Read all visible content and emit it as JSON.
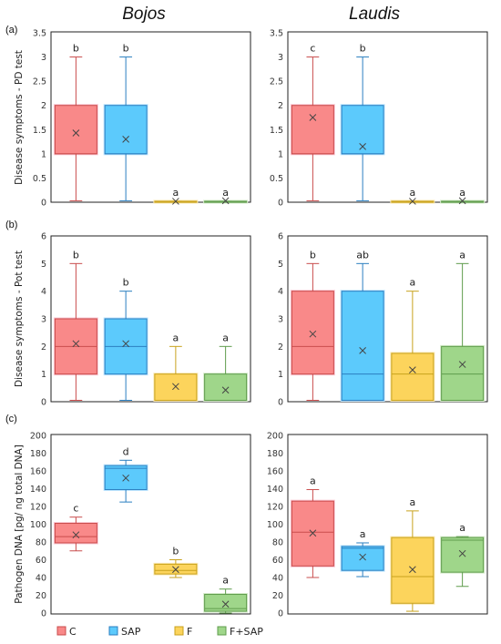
{
  "column_titles": [
    "Bojos",
    "Laudis"
  ],
  "row_labels": [
    "(a)",
    "(b)",
    "(c)"
  ],
  "colors": {
    "C": {
      "fill": "#f98989",
      "stroke": "#c94c4c",
      "glow": "#fbc9d4"
    },
    "SAP": {
      "fill": "#5ccafc",
      "stroke": "#2b7fc0",
      "glow": "#bfe6ff"
    },
    "F": {
      "fill": "#fcd45c",
      "stroke": "#c8a21c",
      "glow": "#fbe9b3"
    },
    "F+SAP": {
      "fill": "#9fd68a",
      "stroke": "#5f9c4c",
      "glow": "#d6eccb"
    }
  },
  "legend": [
    {
      "key": "C",
      "label": "C"
    },
    {
      "key": "SAP",
      "label": "SAP"
    },
    {
      "key": "F",
      "label": "F"
    },
    {
      "key": "F+SAP",
      "label": "F+SAP"
    }
  ],
  "chart_data": [
    {
      "type": "box",
      "panel": "a",
      "column": "Bojos",
      "ylabel": "Disease symptoms - PD test",
      "ylim": [
        0,
        3.5
      ],
      "yticks": [
        "0",
        "0.5",
        "1",
        "1.5",
        "2",
        "2.5",
        "3",
        "3.5"
      ],
      "boxes": [
        {
          "group": "C",
          "min": 0.03,
          "q1": 1,
          "median": 1,
          "q3": 2,
          "max": 3,
          "mean": 1.43,
          "letter": "b"
        },
        {
          "group": "SAP",
          "min": 0.03,
          "q1": 1,
          "median": 1,
          "q3": 2,
          "max": 3,
          "mean": 1.3,
          "letter": "b"
        },
        {
          "group": "F",
          "min": 0,
          "q1": 0,
          "median": 0,
          "q3": 0.02,
          "max": 0.02,
          "mean": 0.02,
          "letter": "a"
        },
        {
          "group": "F+SAP",
          "min": 0,
          "q1": 0,
          "median": 0,
          "q3": 0.02,
          "max": 0.02,
          "mean": 0.03,
          "letter": "a"
        }
      ]
    },
    {
      "type": "box",
      "panel": "a",
      "column": "Laudis",
      "ylabel": "",
      "ylim": [
        0,
        3.5
      ],
      "yticks": [
        "0",
        "0.5",
        "1",
        "1.5",
        "2",
        "2.5",
        "3",
        "3.5"
      ],
      "boxes": [
        {
          "group": "C",
          "min": 0.03,
          "q1": 1,
          "median": 1,
          "q3": 2,
          "max": 3,
          "mean": 1.75,
          "letter": "c"
        },
        {
          "group": "SAP",
          "min": 0.03,
          "q1": 1,
          "median": 1,
          "q3": 2,
          "max": 3,
          "mean": 1.15,
          "letter": "b"
        },
        {
          "group": "F",
          "min": 0,
          "q1": 0,
          "median": 0,
          "q3": 0.02,
          "max": 0.02,
          "mean": 0.02,
          "letter": "a"
        },
        {
          "group": "F+SAP",
          "min": 0,
          "q1": 0,
          "median": 0,
          "q3": 0.02,
          "max": 0.02,
          "mean": 0.03,
          "letter": "a"
        }
      ]
    },
    {
      "type": "box",
      "panel": "b",
      "column": "Bojos",
      "ylabel": "Disease symptoms - Pot test",
      "ylim": [
        0,
        6
      ],
      "yticks": [
        "0",
        "1",
        "2",
        "3",
        "4",
        "5",
        "6"
      ],
      "boxes": [
        {
          "group": "C",
          "min": 0.05,
          "q1": 1,
          "median": 2,
          "q3": 3,
          "max": 5,
          "mean": 2.1,
          "letter": "b"
        },
        {
          "group": "SAP",
          "min": 0.05,
          "q1": 1,
          "median": 2,
          "q3": 3,
          "max": 4,
          "mean": 2.1,
          "letter": "b"
        },
        {
          "group": "F",
          "min": 0.05,
          "q1": 0.05,
          "median": 0.05,
          "q3": 1,
          "max": 2,
          "mean": 0.55,
          "letter": "a"
        },
        {
          "group": "F+SAP",
          "min": 0.05,
          "q1": 0.05,
          "median": 0.05,
          "q3": 1,
          "max": 2,
          "mean": 0.42,
          "letter": "a"
        }
      ]
    },
    {
      "type": "box",
      "panel": "b",
      "column": "Laudis",
      "ylabel": "",
      "ylim": [
        0,
        6
      ],
      "yticks": [
        "0",
        "1",
        "2",
        "3",
        "4",
        "5",
        "6"
      ],
      "boxes": [
        {
          "group": "C",
          "min": 0.05,
          "q1": 1,
          "median": 2,
          "q3": 4,
          "max": 5,
          "mean": 2.45,
          "letter": "b"
        },
        {
          "group": "SAP",
          "min": 0.05,
          "q1": 0.05,
          "median": 1,
          "q3": 4,
          "max": 5,
          "mean": 1.85,
          "letter": "ab"
        },
        {
          "group": "F",
          "min": 0.05,
          "q1": 0.05,
          "median": 1,
          "q3": 1.75,
          "max": 4,
          "mean": 1.15,
          "letter": "a"
        },
        {
          "group": "F+SAP",
          "min": 0.05,
          "q1": 0.05,
          "median": 1,
          "q3": 2,
          "max": 5,
          "mean": 1.35,
          "letter": "a"
        }
      ]
    },
    {
      "type": "box",
      "panel": "c",
      "column": "Bojos",
      "ylabel": "Pathogen DNA [pg/ ng total DNA]",
      "ylim": [
        0,
        200
      ],
      "yticks": [
        "0",
        "20",
        "40",
        "60",
        "80",
        "100",
        "120",
        "140",
        "160",
        "180",
        "200"
      ],
      "boxes": [
        {
          "group": "C",
          "min": 70,
          "q1": 79,
          "median": 86,
          "q3": 101,
          "max": 108,
          "mean": 88,
          "letter": "c"
        },
        {
          "group": "SAP",
          "min": 125,
          "q1": 139,
          "median": 163,
          "q3": 166,
          "max": 172,
          "mean": 152,
          "letter": "d"
        },
        {
          "group": "F",
          "min": 40,
          "q1": 44,
          "median": 48,
          "q3": 55,
          "max": 60,
          "mean": 49,
          "letter": "b"
        },
        {
          "group": "F+SAP",
          "min": 0,
          "q1": 2,
          "median": 5,
          "q3": 21,
          "max": 27,
          "mean": 10,
          "letter": "a"
        }
      ]
    },
    {
      "type": "box",
      "panel": "c",
      "column": "Laudis",
      "ylabel": "",
      "ylim": [
        0,
        200
      ],
      "yticks": [
        "0",
        "20",
        "40",
        "60",
        "80",
        "100",
        "120",
        "140",
        "160",
        "180",
        "200"
      ],
      "boxes": [
        {
          "group": "C",
          "min": 40,
          "q1": 53,
          "median": 91,
          "q3": 126,
          "max": 139,
          "mean": 90,
          "letter": "a"
        },
        {
          "group": "SAP",
          "min": 41,
          "q1": 48,
          "median": 73,
          "q3": 75,
          "max": 79,
          "mean": 63,
          "letter": "a"
        },
        {
          "group": "F",
          "min": 2,
          "q1": 11,
          "median": 41,
          "q3": 85,
          "max": 115,
          "mean": 49,
          "letter": "a"
        },
        {
          "group": "F+SAP",
          "min": 30,
          "q1": 46,
          "median": 82,
          "q3": 85,
          "max": 86,
          "mean": 67,
          "letter": "a"
        }
      ]
    }
  ]
}
